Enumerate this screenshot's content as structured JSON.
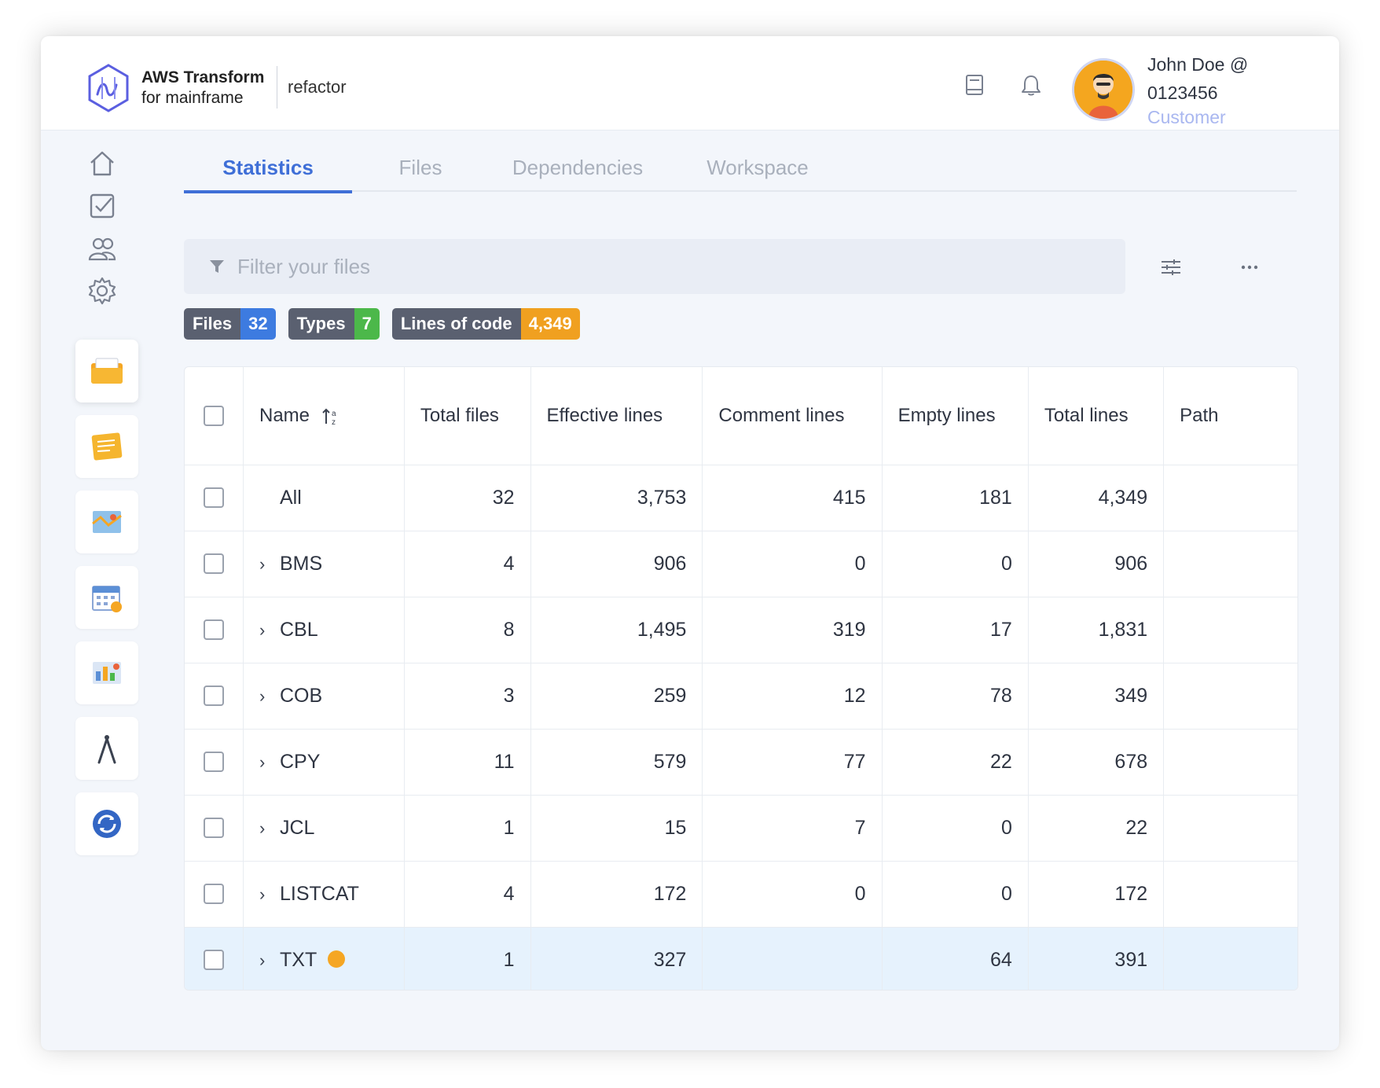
{
  "header": {
    "brand_line1": "AWS Transform",
    "brand_line2": "for mainframe",
    "module": "refactor",
    "icons": [
      "book-icon",
      "bell-icon"
    ],
    "user": {
      "name": "John Doe @ 0123456",
      "role": "Customer"
    }
  },
  "sidebar": {
    "top_icons": [
      "home-icon",
      "checklist-icon",
      "users-icon",
      "gear-icon"
    ],
    "cards": [
      "folder-icon",
      "notes-icon",
      "map-icon",
      "calendar-icon",
      "dashboard-icon",
      "compass-icon",
      "sync-icon"
    ]
  },
  "tabs": [
    "Statistics",
    "Files",
    "Dependencies",
    "Workspace"
  ],
  "active_tab": "Statistics",
  "filter": {
    "placeholder": "Filter your files"
  },
  "badges": {
    "files": {
      "label": "Files",
      "value": "32",
      "color": "#3d7be0"
    },
    "types": {
      "label": "Types",
      "value": "7",
      "color": "#4cb84a"
    },
    "loc": {
      "label": "Lines of code",
      "value": "4,349",
      "color": "#f0a020"
    }
  },
  "table": {
    "headers": {
      "name": "Name",
      "total_files": "Total files",
      "effective_lines": "Effective lines",
      "comment_lines": "Comment lines",
      "empty_lines": "Empty lines",
      "total_lines": "Total lines",
      "path": "Path"
    },
    "rows": [
      {
        "name": "All",
        "total_files": "32",
        "effective": "3,753",
        "comment": "415",
        "empty": "181",
        "total": "4,349",
        "path": ""
      },
      {
        "name": "BMS",
        "total_files": "4",
        "effective": "906",
        "comment": "0",
        "empty": "0",
        "total": "906",
        "path": ""
      },
      {
        "name": "CBL",
        "total_files": "8",
        "effective": "1,495",
        "comment": "319",
        "empty": "17",
        "total": "1,831",
        "path": ""
      },
      {
        "name": "COB",
        "total_files": "3",
        "effective": "259",
        "comment": "12",
        "empty": "78",
        "total": "349",
        "path": ""
      },
      {
        "name": "CPY",
        "total_files": "11",
        "effective": "579",
        "comment": "77",
        "empty": "22",
        "total": "678",
        "path": ""
      },
      {
        "name": "JCL",
        "total_files": "1",
        "effective": "15",
        "comment": "7",
        "empty": "0",
        "total": "22",
        "path": ""
      },
      {
        "name": "LISTCAT",
        "total_files": "4",
        "effective": "172",
        "comment": "0",
        "empty": "0",
        "total": "172",
        "path": ""
      },
      {
        "name": "TXT",
        "total_files": "1",
        "effective": "327",
        "comment": "",
        "empty": "64",
        "total": "391",
        "path": ""
      }
    ]
  }
}
